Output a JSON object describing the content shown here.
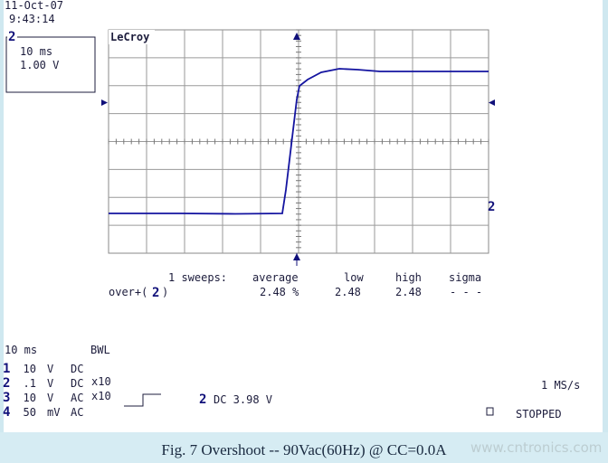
{
  "header": {
    "date": "11-Oct-07",
    "time": "9:43:14"
  },
  "channel_box": {
    "channel": "2",
    "timebase": "10 ms",
    "volts": "1.00 V"
  },
  "brand": "LeCroy",
  "trace_marker": "2",
  "measurements": {
    "sweeps": "1 sweeps:",
    "columns": [
      "average",
      "low",
      "high",
      "sigma"
    ],
    "parameter": "over+(",
    "parameter_channel": "2",
    "parameter_close": ")",
    "values": [
      "2.48 %",
      "2.48",
      "2.48",
      "- - -"
    ]
  },
  "footer": {
    "timebase": "10 ms",
    "bwl": "BWL",
    "channels": [
      {
        "num": "1",
        "scale": "10",
        "unit": "V",
        "coupling": "DC",
        "probe": null
      },
      {
        "num": "2",
        "scale": ".1",
        "unit": "V",
        "coupling": "DC",
        "probe": "x10"
      },
      {
        "num": "3",
        "scale": "10",
        "unit": "V",
        "coupling": "AC",
        "probe": "x10"
      },
      {
        "num": "4",
        "scale": "50",
        "unit": "mV",
        "coupling": "AC",
        "probe": null
      }
    ],
    "trigger_channel": "2",
    "trigger": "DC 3.98 V",
    "sample_rate": "1 MS/s",
    "status": "STOPPED"
  },
  "caption": "Fig. 7  Overshoot  --  90Vac(60Hz) @ CC=0.0A",
  "watermark": "www.cntronics.com"
}
